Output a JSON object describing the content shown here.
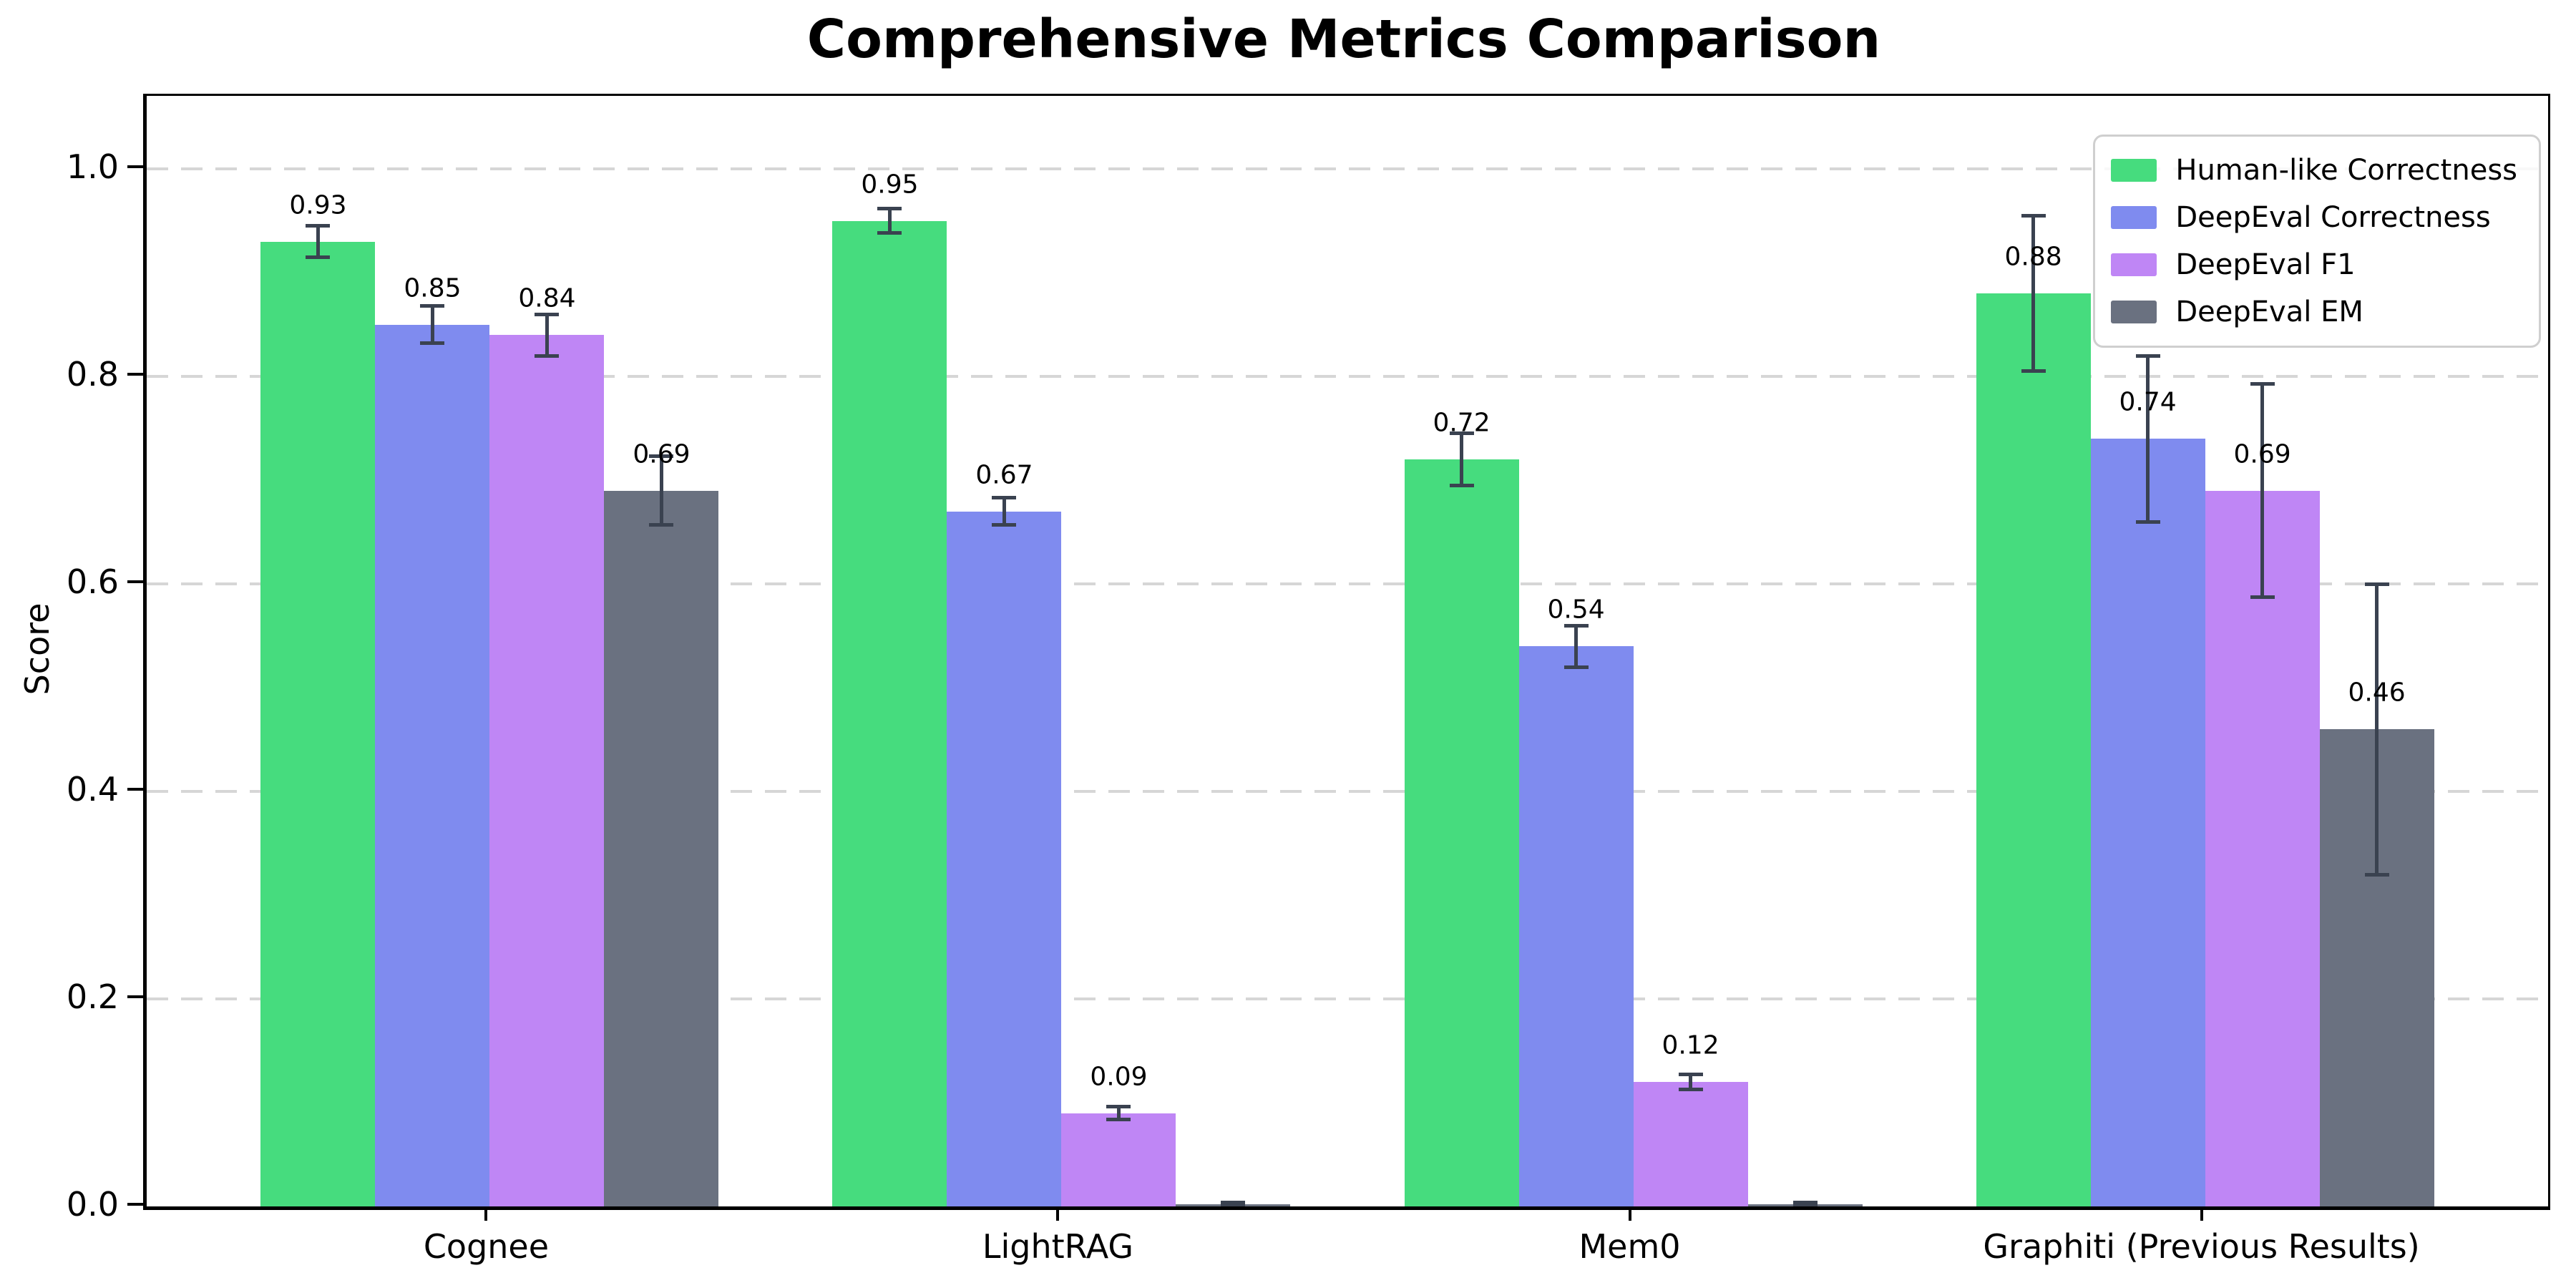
{
  "chart_data": {
    "type": "bar",
    "title": "Comprehensive Metrics Comparison",
    "ylabel": "Score",
    "xlabel": "",
    "categories": [
      "Cognee",
      "LightRAG",
      "Mem0",
      "Graphiti (Previous Results)"
    ],
    "ylim": [
      0,
      1.07
    ],
    "yticks": [
      0.0,
      0.2,
      0.4,
      0.6,
      0.8,
      1.0
    ],
    "yticklabels": [
      "0.0",
      "0.2",
      "0.4",
      "0.6",
      "0.8",
      "1.0"
    ],
    "grid": {
      "axis": "y",
      "style": "dashed",
      "color": "#d6d6d6"
    },
    "legend": {
      "position": "upper right",
      "labels": [
        "Human-like Correctness",
        "DeepEval Correctness",
        "DeepEval F1",
        "DeepEval EM"
      ]
    },
    "bar_width_units": 0.2,
    "error_bar_color": "#3a4250",
    "series": [
      {
        "name": "Human-like Correctness",
        "color": "#46dc7e",
        "values": [
          0.93,
          0.95,
          0.72,
          0.88
        ],
        "errors": [
          0.015,
          0.012,
          0.025,
          0.075
        ],
        "value_labels": [
          "0.93",
          "0.95",
          "0.72",
          "0.88"
        ]
      },
      {
        "name": "DeepEval Correctness",
        "color": "#7f8bef",
        "values": [
          0.85,
          0.67,
          0.54,
          0.74
        ],
        "errors": [
          0.018,
          0.013,
          0.02,
          0.08
        ],
        "value_labels": [
          "0.85",
          "0.67",
          "0.54",
          "0.74"
        ]
      },
      {
        "name": "DeepEval F1",
        "color": "#bf86f5",
        "values": [
          0.84,
          0.09,
          0.12,
          0.69
        ],
        "errors": [
          0.02,
          0.006,
          0.007,
          0.103
        ],
        "value_labels": [
          "0.84",
          "0.09",
          "0.12",
          "0.69"
        ]
      },
      {
        "name": "DeepEval EM",
        "color": "#6a7180",
        "values": [
          0.69,
          0.0,
          0.0,
          0.46
        ],
        "errors": [
          0.033,
          0.004,
          0.004,
          0.14
        ],
        "value_labels": [
          "0.69",
          null,
          null,
          "0.46"
        ]
      }
    ]
  }
}
